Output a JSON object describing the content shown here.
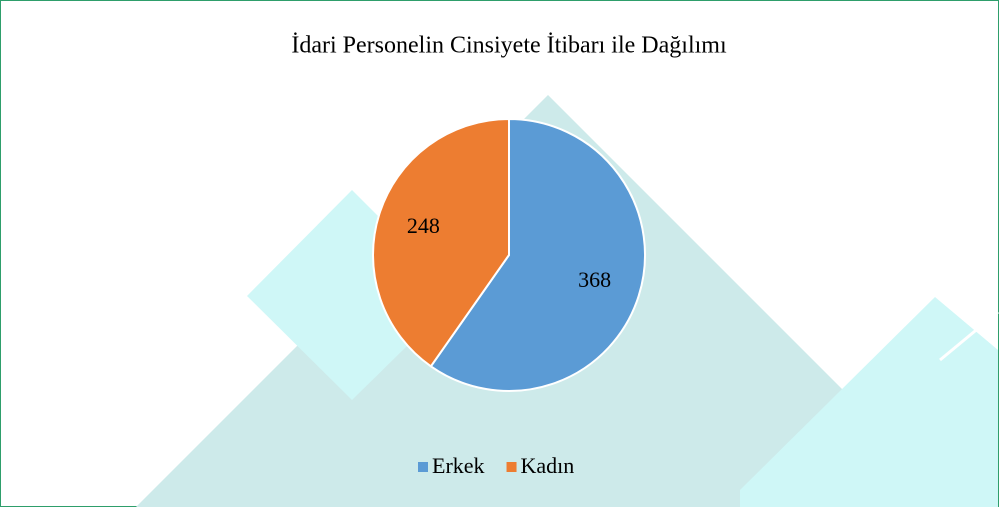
{
  "chart_data": {
    "type": "pie",
    "title": "İdari Personelin Cinsiyete İtibarı ile Dağılımı",
    "categories": [
      "Erkek",
      "Kadın"
    ],
    "values": [
      368,
      248
    ],
    "colors": [
      "#5b9bd5",
      "#ed7d31"
    ],
    "legend": "bottom"
  }
}
